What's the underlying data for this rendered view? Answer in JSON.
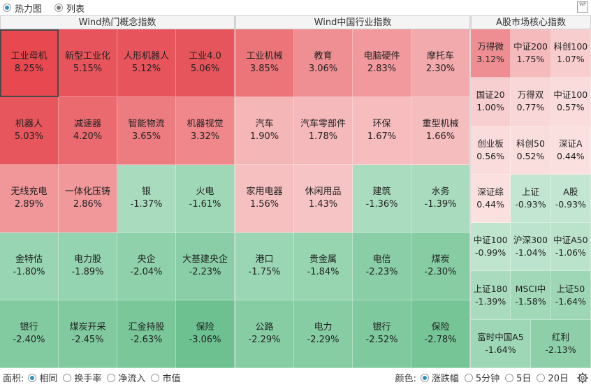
{
  "top_bar": {
    "heatmap_label": "热力图",
    "list_label": "列表",
    "wp_icon": "WP"
  },
  "sections": [
    {
      "title": "Wind热门概念指数",
      "tiles": [
        {
          "name": "工业母机",
          "pct": "8.25%",
          "color": "#e8484f"
        },
        {
          "name": "新型工业化",
          "pct": "5.15%",
          "color": "#e7545b"
        },
        {
          "name": "人形机器人",
          "pct": "5.12%",
          "color": "#e7545b"
        },
        {
          "name": "工业4.0",
          "pct": "5.06%",
          "color": "#e7555c"
        },
        {
          "name": "机器人",
          "pct": "5.03%",
          "color": "#e7565d"
        },
        {
          "name": "减速器",
          "pct": "4.20%",
          "color": "#ea6a70"
        },
        {
          "name": "智能物流",
          "pct": "3.65%",
          "color": "#ed7c81"
        },
        {
          "name": "机器视觉",
          "pct": "3.32%",
          "color": "#ef878b"
        },
        {
          "name": "无线充电",
          "pct": "2.89%",
          "color": "#f1979a"
        },
        {
          "name": "一体化压铸",
          "pct": "2.86%",
          "color": "#f1989b"
        },
        {
          "name": "银",
          "pct": "-1.37%",
          "color": "#a9dcbf"
        },
        {
          "name": "火电",
          "pct": "-1.61%",
          "color": "#9fd8b7"
        },
        {
          "name": "金特估",
          "pct": "-1.80%",
          "color": "#98d5b2"
        },
        {
          "name": "电力股",
          "pct": "-1.89%",
          "color": "#95d4b0"
        },
        {
          "name": "央企",
          "pct": "-2.04%",
          "color": "#8fd1ab"
        },
        {
          "name": "大基建央企",
          "pct": "-2.23%",
          "color": "#89cea6"
        },
        {
          "name": "银行",
          "pct": "-2.40%",
          "color": "#82cba1"
        },
        {
          "name": "煤炭开采",
          "pct": "-2.45%",
          "color": "#81ca9f"
        },
        {
          "name": "汇金持股",
          "pct": "-2.63%",
          "color": "#7ac79a"
        },
        {
          "name": "保险",
          "pct": "-3.06%",
          "color": "#6dc190"
        }
      ]
    },
    {
      "title": "Wind中国行业指数",
      "tiles": [
        {
          "name": "工业机械",
          "pct": "3.85%",
          "color": "#ec7579"
        },
        {
          "name": "教育",
          "pct": "3.06%",
          "color": "#ef8f93"
        },
        {
          "name": "电脑硬件",
          "pct": "2.83%",
          "color": "#f1999c"
        },
        {
          "name": "摩托车",
          "pct": "2.30%",
          "color": "#f3aaac"
        },
        {
          "name": "汽车",
          "pct": "1.90%",
          "color": "#f5b6b8"
        },
        {
          "name": "汽车零部件",
          "pct": "1.78%",
          "color": "#f5b9bb"
        },
        {
          "name": "环保",
          "pct": "1.67%",
          "color": "#f6bcbe"
        },
        {
          "name": "重型机械",
          "pct": "1.66%",
          "color": "#f6bdbf"
        },
        {
          "name": "家用电器",
          "pct": "1.56%",
          "color": "#f6c0c1"
        },
        {
          "name": "休闲用品",
          "pct": "1.43%",
          "color": "#f7c4c5"
        },
        {
          "name": "建筑",
          "pct": "-1.36%",
          "color": "#aadcc0"
        },
        {
          "name": "水务",
          "pct": "-1.39%",
          "color": "#a9dcbf"
        },
        {
          "name": "港口",
          "pct": "-1.75%",
          "color": "#9ad6b4"
        },
        {
          "name": "贵金属",
          "pct": "-1.84%",
          "color": "#97d5b1"
        },
        {
          "name": "电信",
          "pct": "-2.23%",
          "color": "#89cea6"
        },
        {
          "name": "煤炭",
          "pct": "-2.30%",
          "color": "#86cda4"
        },
        {
          "name": "公路",
          "pct": "-2.29%",
          "color": "#86cda4"
        },
        {
          "name": "电力",
          "pct": "-2.29%",
          "color": "#86cda4"
        },
        {
          "name": "银行",
          "pct": "-2.52%",
          "color": "#7ec99d"
        },
        {
          "name": "保险",
          "pct": "-2.78%",
          "color": "#76c597"
        }
      ]
    },
    {
      "title": "A股市场核心指数",
      "tiles": [
        {
          "name": "万得微",
          "pct": "3.12%",
          "color": "#ef8e92"
        },
        {
          "name": "中证200",
          "pct": "1.75%",
          "color": "#f5babc"
        },
        {
          "name": "科创100",
          "pct": "1.07%",
          "color": "#f8cdce"
        },
        {
          "name": "国证20",
          "pct": "1.00%",
          "color": "#f8cfd0"
        },
        {
          "name": "万得双",
          "pct": "0.77%",
          "color": "#f9d6d7"
        },
        {
          "name": "中证100",
          "pct": "0.57%",
          "color": "#fadcdc"
        },
        {
          "name": "创业板",
          "pct": "0.56%",
          "color": "#fadcdd"
        },
        {
          "name": "科创50",
          "pct": "0.52%",
          "color": "#fadddd"
        },
        {
          "name": "深证A",
          "pct": "0.44%",
          "color": "#fbe0e0"
        },
        {
          "name": "深证综",
          "pct": "0.44%",
          "color": "#fbe0e0"
        },
        {
          "name": "上证",
          "pct": "-0.93%",
          "color": "#c2e6d1"
        },
        {
          "name": "A股",
          "pct": "-0.93%",
          "color": "#c2e6d1"
        },
        {
          "name": "中证100",
          "pct": "-0.99%",
          "color": "#bfe5cf"
        },
        {
          "name": "沪深300",
          "pct": "-1.04%",
          "color": "#bce3cd"
        },
        {
          "name": "中证A50",
          "pct": "-1.06%",
          "color": "#bbe3cc"
        },
        {
          "name": "上证180",
          "pct": "-1.39%",
          "color": "#a9dcbf"
        },
        {
          "name": "MSCI中",
          "pct": "-1.58%",
          "color": "#a0d8b8"
        },
        {
          "name": "上证50",
          "pct": "-1.64%",
          "color": "#9dd7b6"
        },
        {
          "name": "富时中国A5",
          "pct": "-1.64%",
          "color": "#9dd7b6"
        },
        {
          "name": "红利",
          "pct": "-2.13%",
          "color": "#8ccfa8"
        }
      ]
    }
  ],
  "bottom_bar": {
    "area_label": "面积:",
    "area_options": [
      "相同",
      "换手率",
      "净流入",
      "市值"
    ],
    "color_label": "颜色:",
    "color_options": [
      "涨跌幅",
      "5分钟",
      "5日",
      "20日"
    ],
    "selected_area": "相同",
    "selected_color": "涨跌幅"
  }
}
